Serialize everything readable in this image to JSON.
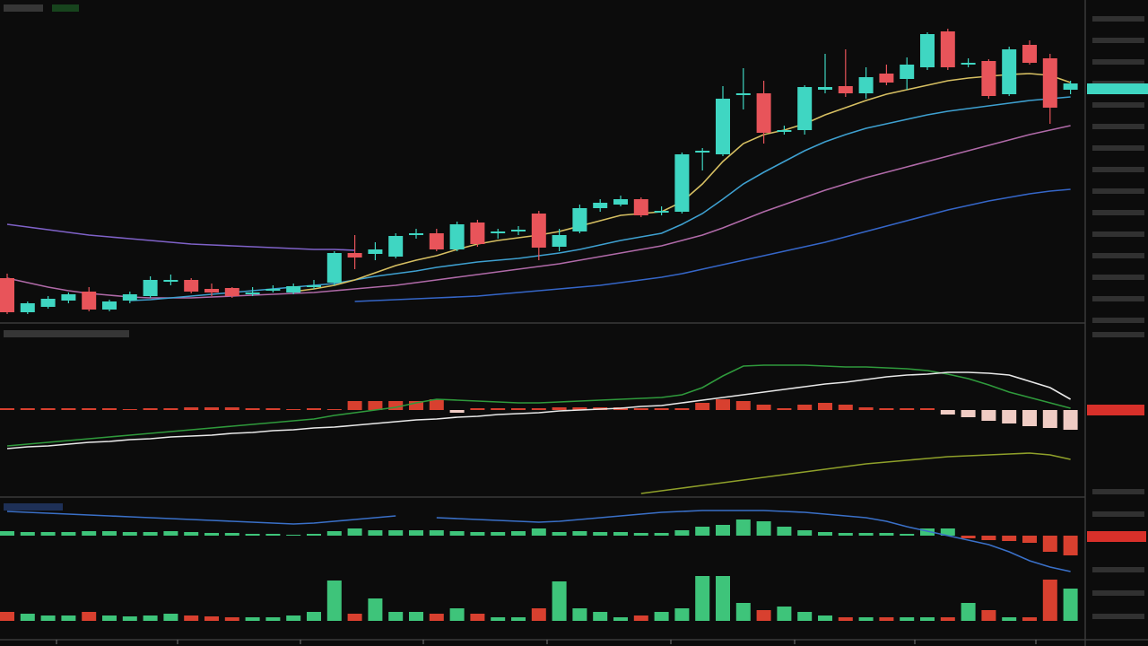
{
  "chart_data": [
    {
      "type": "candlestick",
      "up_color": "#3fd6c2",
      "down_color": "#e8545a",
      "ylim": [
        0,
        350
      ],
      "categories": [
        null,
        null,
        null,
        null,
        null,
        null,
        null,
        null,
        null,
        null,
        null,
        null,
        null,
        null,
        null,
        null,
        null,
        null,
        null,
        null,
        null,
        null,
        null,
        null,
        null,
        null,
        null,
        null,
        null,
        null,
        null,
        null,
        null,
        null,
        null,
        null,
        null,
        null,
        null,
        null,
        null,
        null,
        null,
        null,
        null,
        null,
        null,
        null,
        null,
        null,
        null,
        null,
        null
      ],
      "open": [
        45,
        7,
        13,
        20,
        30,
        10,
        20,
        25,
        43,
        43,
        33,
        34,
        29,
        33,
        29,
        35,
        40,
        73,
        72,
        69,
        93,
        95,
        77,
        107,
        95,
        99,
        117,
        80,
        97,
        123,
        127,
        133,
        120,
        119,
        185,
        183,
        249,
        251,
        210,
        210,
        255,
        259,
        251,
        273,
        267,
        280,
        320,
        285,
        287,
        250,
        305,
        290,
        255
      ],
      "close": [
        7,
        17,
        22,
        27,
        10,
        19,
        27,
        43,
        43,
        30,
        29,
        25,
        29,
        33,
        36,
        37,
        73,
        68,
        77,
        92,
        95,
        77,
        105,
        83,
        97,
        99,
        79,
        93,
        123,
        129,
        133,
        115,
        120,
        183,
        187,
        245,
        251,
        207,
        210,
        258,
        258,
        251,
        269,
        263,
        283,
        317,
        280,
        285,
        248,
        300,
        285,
        235,
        262
      ],
      "high": [
        50,
        19,
        25,
        29,
        35,
        21,
        30,
        47,
        49,
        45,
        39,
        35,
        35,
        37,
        39,
        43,
        75,
        93,
        85,
        95,
        100,
        100,
        108,
        110,
        100,
        103,
        120,
        100,
        127,
        133,
        137,
        135,
        125,
        185,
        190,
        259,
        279,
        265,
        215,
        260,
        295,
        300,
        280,
        283,
        291,
        319,
        323,
        290,
        289,
        303,
        310,
        295,
        265
      ],
      "low": [
        5,
        5,
        11,
        17,
        8,
        8,
        17,
        23,
        37,
        28,
        25,
        23,
        25,
        29,
        27,
        33,
        37,
        55,
        65,
        67,
        89,
        75,
        75,
        80,
        89,
        93,
        65,
        75,
        95,
        119,
        125,
        113,
        115,
        117,
        165,
        181,
        233,
        195,
        205,
        205,
        251,
        247,
        245,
        260,
        255,
        277,
        277,
        280,
        245,
        248,
        283,
        217,
        250
      ],
      "series": [
        {
          "color": "#7f62c8",
          "values": [
            105,
            102,
            99,
            96,
            93,
            91,
            89,
            87,
            85,
            83,
            82,
            81,
            80,
            79,
            78,
            77,
            77,
            76,
            null,
            null,
            null,
            null,
            null,
            null,
            null,
            null,
            null,
            null,
            null,
            null,
            null,
            null,
            null,
            null,
            null,
            null,
            null,
            null,
            null,
            null,
            null,
            null,
            null,
            null,
            null,
            null,
            null,
            null,
            null,
            null,
            null,
            null,
            null
          ]
        },
        {
          "color": "#3566c8",
          "values": [
            null,
            null,
            null,
            null,
            null,
            null,
            null,
            null,
            null,
            null,
            null,
            null,
            null,
            null,
            null,
            null,
            null,
            19,
            20,
            21,
            22,
            23,
            24,
            25,
            27,
            29,
            31,
            33,
            35,
            37,
            40,
            43,
            46,
            50,
            55,
            60,
            65,
            70,
            75,
            80,
            85,
            91,
            97,
            103,
            109,
            115,
            121,
            126,
            131,
            135,
            139,
            142,
            144
          ]
        },
        {
          "color": "#b06aa8",
          "values": [
            45,
            40,
            35,
            31,
            28,
            26,
            24,
            23,
            23,
            23,
            24,
            25,
            26,
            27,
            28,
            29,
            31,
            33,
            35,
            37,
            40,
            43,
            46,
            49,
            52,
            55,
            58,
            61,
            65,
            69,
            73,
            77,
            81,
            87,
            93,
            101,
            110,
            119,
            127,
            135,
            143,
            150,
            157,
            163,
            169,
            175,
            181,
            187,
            193,
            199,
            205,
            210,
            215
          ]
        },
        {
          "color": "#3ea0d0",
          "values": [
            null,
            null,
            null,
            null,
            null,
            null,
            20,
            21,
            23,
            25,
            27,
            29,
            31,
            33,
            35,
            37,
            39,
            43,
            47,
            50,
            53,
            57,
            60,
            63,
            65,
            67,
            70,
            73,
            77,
            82,
            87,
            91,
            95,
            105,
            117,
            133,
            150,
            163,
            175,
            187,
            197,
            205,
            212,
            217,
            222,
            227,
            231,
            234,
            237,
            240,
            243,
            245,
            247
          ]
        },
        {
          "color": "#d6bf62",
          "values": [
            null,
            null,
            null,
            null,
            null,
            null,
            null,
            null,
            null,
            null,
            null,
            null,
            null,
            null,
            30,
            33,
            37,
            43,
            51,
            59,
            65,
            70,
            77,
            83,
            87,
            90,
            93,
            97,
            103,
            109,
            115,
            117,
            119,
            130,
            150,
            175,
            195,
            205,
            210,
            217,
            227,
            235,
            243,
            250,
            255,
            260,
            265,
            268,
            270,
            272,
            273,
            271,
            263
          ]
        }
      ]
    },
    {
      "type": "combo",
      "ylim": [
        -95,
        95
      ],
      "categories": [
        null,
        null,
        null,
        null,
        null,
        null,
        null,
        null,
        null,
        null,
        null,
        null,
        null,
        null,
        null,
        null,
        null,
        null,
        null,
        null,
        null,
        null,
        null,
        null,
        null,
        null,
        null,
        null,
        null,
        null,
        null,
        null,
        null,
        null,
        null,
        null,
        null,
        null,
        null,
        null,
        null,
        null,
        null,
        null,
        null,
        null,
        null,
        null,
        null,
        null,
        null,
        null,
        null
      ],
      "up_color": "#d8402f",
      "down_color": "#f0ccc4",
      "series": [
        {
          "type": "bar",
          "values": [
            2,
            2,
            2,
            2,
            2,
            2,
            1,
            2,
            2,
            3,
            3,
            3,
            2,
            2,
            1,
            2,
            1,
            10,
            10,
            10,
            10,
            12,
            -3,
            2,
            2,
            2,
            2,
            3,
            3,
            3,
            3,
            2,
            2,
            2,
            8,
            12,
            10,
            6,
            2,
            6,
            8,
            6,
            3,
            2,
            2,
            2,
            -5,
            -8,
            -12,
            -15,
            -18,
            -20,
            -22
          ]
        },
        {
          "type": "line",
          "color": "#2f9a3c",
          "values": [
            -40,
            -38,
            -36,
            -34,
            -32,
            -30,
            -28,
            -26,
            -24,
            -22,
            -20,
            -18,
            -16,
            -14,
            -12,
            -10,
            -6,
            -3,
            0,
            3,
            8,
            12,
            11,
            10,
            9,
            8,
            8,
            9,
            10,
            11,
            12,
            13,
            14,
            17,
            25,
            38,
            49,
            50,
            50,
            50,
            49,
            48,
            48,
            47,
            46,
            44,
            40,
            35,
            28,
            20,
            14,
            8,
            2
          ]
        },
        {
          "type": "line",
          "color": "#8fa02a",
          "values": [
            null,
            null,
            null,
            null,
            null,
            null,
            null,
            null,
            null,
            null,
            null,
            null,
            null,
            null,
            null,
            null,
            null,
            null,
            null,
            null,
            null,
            null,
            null,
            null,
            null,
            null,
            null,
            null,
            null,
            null,
            null,
            -93,
            -90,
            -87,
            -84,
            -81,
            -78,
            -75,
            -72,
            -69,
            -66,
            -63,
            -60,
            -58,
            -56,
            -54,
            -52,
            -51,
            -50,
            -49,
            -48,
            -50,
            -55
          ]
        },
        {
          "type": "line",
          "color": "#e8e8e8",
          "values": [
            -43,
            -41,
            -40,
            -38,
            -36,
            -35,
            -33,
            -32,
            -30,
            -29,
            -28,
            -26,
            -25,
            -23,
            -22,
            -20,
            -19,
            -17,
            -15,
            -13,
            -11,
            -10,
            -8,
            -7,
            -5,
            -4,
            -3,
            -1,
            0,
            1,
            2,
            4,
            5,
            8,
            11,
            14,
            17,
            20,
            23,
            26,
            29,
            31,
            34,
            37,
            39,
            40,
            42,
            42,
            41,
            39,
            32,
            25,
            12
          ]
        }
      ]
    },
    {
      "type": "volume",
      "ylim": [
        -20,
        135
      ],
      "up_color": "#3ec47a",
      "down_color": "#d8402f",
      "categories": [
        null,
        null,
        null,
        null,
        null,
        null,
        null,
        null,
        null,
        null,
        null,
        null,
        null,
        null,
        null,
        null,
        null,
        null,
        null,
        null,
        null,
        null,
        null,
        null,
        null,
        null,
        null,
        null,
        null,
        null,
        null,
        null,
        null,
        null,
        null,
        null,
        null,
        null,
        null,
        null,
        null,
        null,
        null,
        null,
        null,
        null,
        null,
        null,
        null,
        null,
        null,
        null,
        null
      ],
      "values": [
        10,
        8,
        6,
        6,
        10,
        6,
        5,
        6,
        8,
        6,
        5,
        4,
        4,
        4,
        6,
        10,
        45,
        8,
        25,
        10,
        10,
        8,
        14,
        8,
        4,
        4,
        14,
        44,
        14,
        10,
        4,
        6,
        10,
        14,
        50,
        50,
        20,
        12,
        16,
        10,
        6,
        4,
        4,
        4,
        4,
        4,
        4,
        20,
        12,
        4,
        4,
        46,
        36
      ]
    },
    {
      "type": "combo",
      "ylim": [
        -43,
        40
      ],
      "up_color": "#3ec47a",
      "down_color": "#d8402f",
      "categories": [
        null,
        null,
        null,
        null,
        null,
        null,
        null,
        null,
        null,
        null,
        null,
        null,
        null,
        null,
        null,
        null,
        null,
        null,
        null,
        null,
        null,
        null,
        null,
        null,
        null,
        null,
        null,
        null,
        null,
        null,
        null,
        null,
        null,
        null,
        null,
        null,
        null,
        null,
        null,
        null,
        null,
        null,
        null,
        null,
        null,
        null,
        null,
        null,
        null,
        null,
        null,
        null,
        null
      ],
      "series": [
        {
          "type": "bar",
          "values": [
            5,
            4,
            4,
            4,
            5,
            5,
            4,
            4,
            5,
            4,
            3,
            3,
            2,
            2,
            1,
            2,
            5,
            8,
            6,
            6,
            6,
            6,
            5,
            4,
            4,
            5,
            8,
            4,
            5,
            4,
            4,
            3,
            3,
            6,
            10,
            12,
            18,
            16,
            10,
            6,
            4,
            3,
            3,
            3,
            2,
            8,
            8,
            -3,
            -5,
            -6,
            -8,
            -18,
            -22
          ]
        },
        {
          "type": "line",
          "color": "#3a70c8",
          "values": [
            27,
            26,
            25,
            24,
            23,
            22,
            21,
            20,
            19,
            18,
            17,
            16,
            15,
            14,
            13,
            14,
            16,
            18,
            20,
            22,
            null,
            20,
            19,
            18,
            17,
            16,
            15,
            16,
            18,
            20,
            22,
            24,
            26,
            27,
            28,
            28,
            28,
            28,
            27,
            26,
            24,
            22,
            20,
            16,
            10,
            5,
            0,
            -5,
            -10,
            -18,
            -28,
            -35,
            -40
          ]
        }
      ]
    }
  ]
}
